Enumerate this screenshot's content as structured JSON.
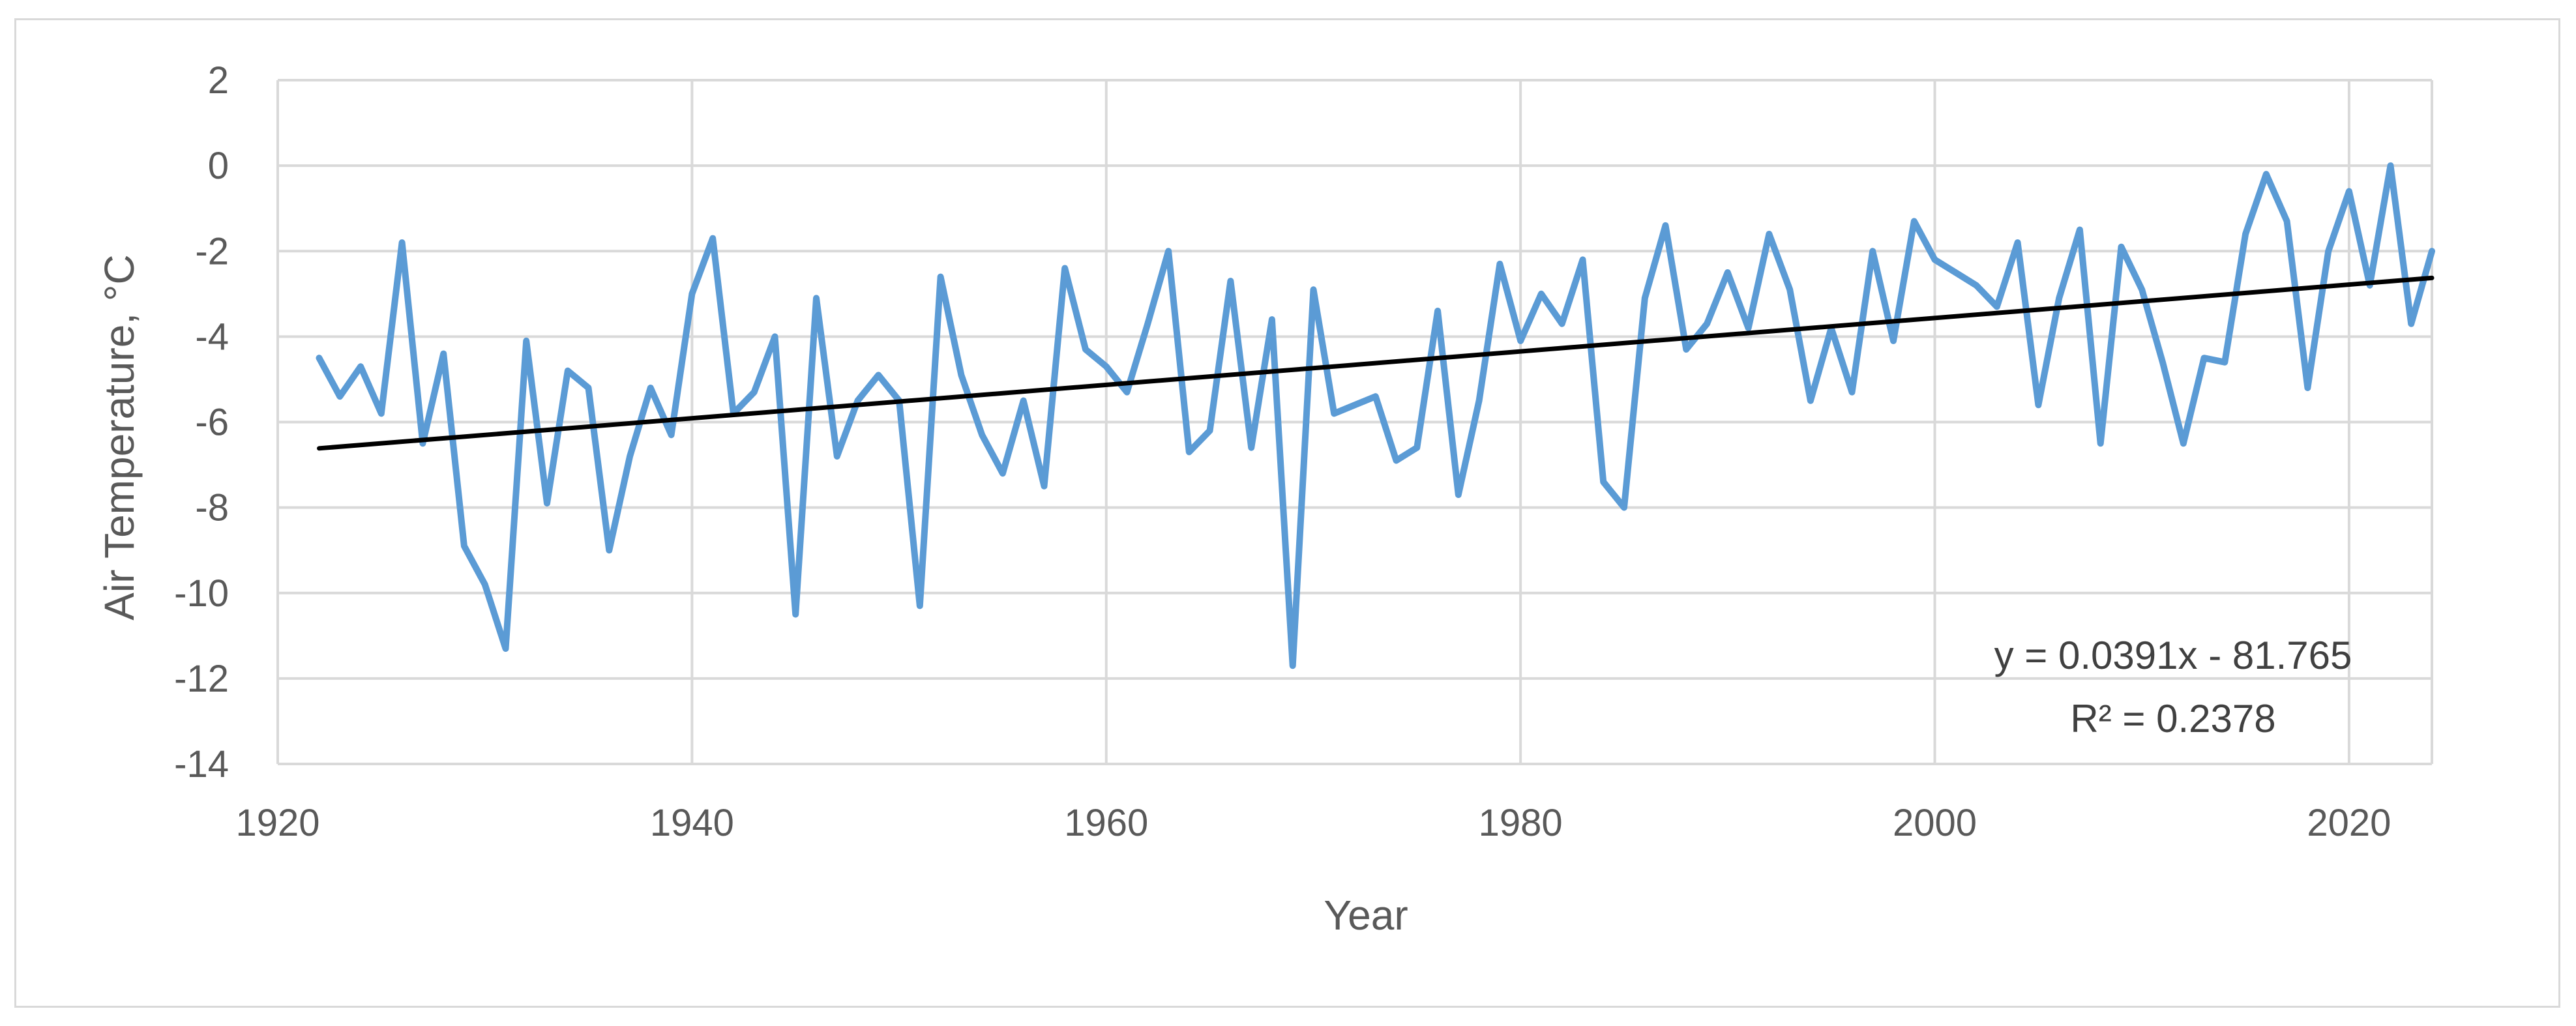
{
  "chart_data": {
    "type": "line",
    "title": "",
    "xlabel": "Year",
    "ylabel": "Air Temperature, °C",
    "xlim": [
      1920,
      2024
    ],
    "ylim": [
      -14,
      2
    ],
    "x_ticks": [
      1920,
      1940,
      1960,
      1980,
      2000,
      2020
    ],
    "y_ticks": [
      2,
      0,
      -2,
      -4,
      -6,
      -8,
      -10,
      -12,
      -14
    ],
    "grid": true,
    "legend": "none",
    "series": [
      {
        "color": "#5b9bd5",
        "x": [
          1922,
          1923,
          1924,
          1925,
          1926,
          1927,
          1928,
          1929,
          1930,
          1931,
          1932,
          1933,
          1934,
          1935,
          1936,
          1937,
          1938,
          1939,
          1940,
          1941,
          1942,
          1943,
          1944,
          1945,
          1946,
          1947,
          1948,
          1949,
          1950,
          1951,
          1952,
          1953,
          1954,
          1955,
          1956,
          1957,
          1958,
          1959,
          1960,
          1961,
          1962,
          1963,
          1964,
          1965,
          1966,
          1967,
          1968,
          1969,
          1970,
          1971,
          1972,
          1973,
          1974,
          1975,
          1976,
          1977,
          1978,
          1979,
          1980,
          1981,
          1982,
          1983,
          1984,
          1985,
          1986,
          1987,
          1988,
          1989,
          1990,
          1991,
          1992,
          1993,
          1994,
          1995,
          1996,
          1997,
          1998,
          1999,
          2000,
          2001,
          2002,
          2003,
          2004,
          2005,
          2006,
          2007,
          2008,
          2009,
          2010,
          2011,
          2012,
          2013,
          2014,
          2015,
          2016,
          2017,
          2018,
          2019,
          2020,
          2021,
          2022,
          2023,
          2024
        ],
        "y": [
          -4.5,
          -5.4,
          -4.7,
          -5.8,
          -1.8,
          -6.5,
          -4.4,
          -8.9,
          -9.8,
          -11.3,
          -4.1,
          -7.9,
          -4.8,
          -5.2,
          -9.0,
          -6.8,
          -5.2,
          -6.3,
          -3.0,
          -1.7,
          -5.8,
          -5.3,
          -4.0,
          -10.5,
          -3.1,
          -6.8,
          -5.5,
          -4.9,
          -5.5,
          -10.3,
          -2.6,
          -4.9,
          -6.3,
          -7.2,
          -5.5,
          -7.5,
          -2.4,
          -4.3,
          -4.7,
          -5.3,
          -3.7,
          -2.0,
          -6.7,
          -6.2,
          -2.7,
          -6.6,
          -3.6,
          -11.7,
          -2.9,
          -5.8,
          -5.6,
          -5.4,
          -6.9,
          -6.6,
          -3.4,
          -7.7,
          -5.5,
          -2.3,
          -4.1,
          -3.0,
          -3.7,
          -2.2,
          -7.4,
          -8.0,
          -3.1,
          -1.4,
          -4.3,
          -3.7,
          -2.5,
          -3.8,
          -1.6,
          -2.9,
          -5.5,
          -3.8,
          -5.3,
          -2.0,
          -4.1,
          -1.3,
          -2.2,
          -2.5,
          -2.8,
          -3.3,
          -1.8,
          -5.6,
          -3.1,
          -1.5,
          -6.5,
          -1.9,
          -2.9,
          -4.6,
          -6.5,
          -4.5,
          -4.6,
          -1.6,
          -0.2,
          -1.3,
          -5.2,
          -2.0,
          -0.6,
          -2.8,
          0.0,
          -3.7,
          -2.0
        ]
      }
    ],
    "trendline": {
      "color": "#000000",
      "slope": 0.0391,
      "intercept": -81.765,
      "x_range": [
        1922,
        2024
      ],
      "equation": "y = 0.0391x - 81.765",
      "r_squared": "R² = 0.2378"
    }
  }
}
